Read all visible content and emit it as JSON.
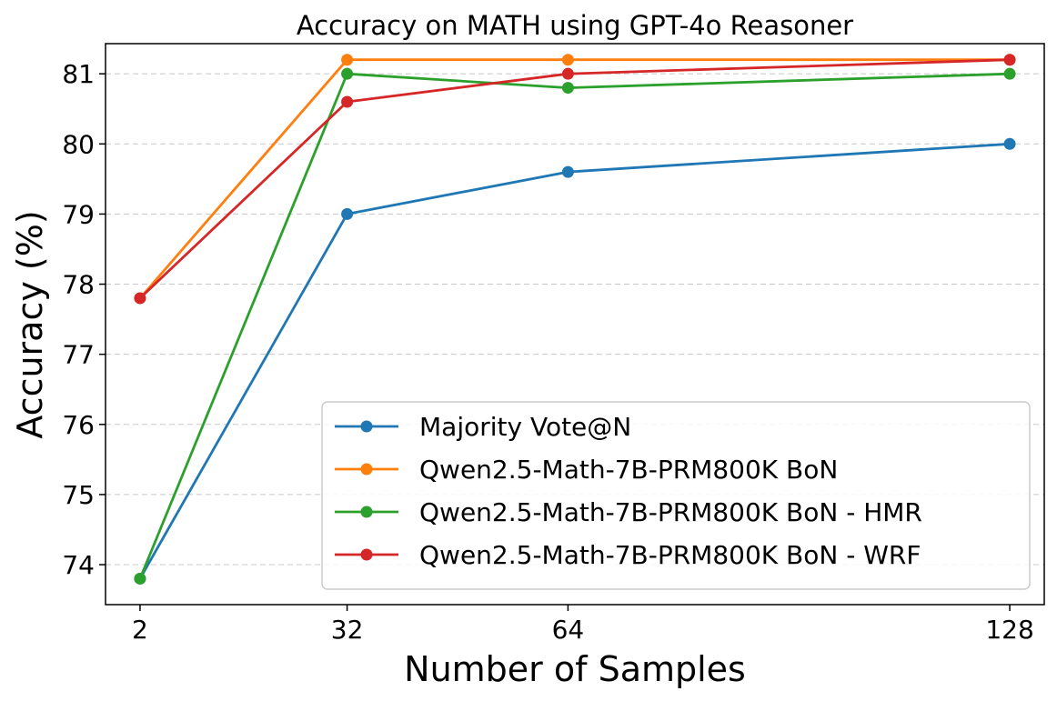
{
  "chart_data": {
    "type": "line",
    "title": "Accuracy on MATH using GPT-4o Reasoner",
    "xlabel": "Number of Samples",
    "ylabel": "Accuracy (%)",
    "x": [
      2,
      32,
      64,
      128
    ],
    "x_tick_labels": [
      "2",
      "32",
      "64",
      "128"
    ],
    "y_ticks": [
      74,
      75,
      76,
      77,
      78,
      79,
      80,
      81
    ],
    "y_tick_labels": [
      "74",
      "75",
      "76",
      "77",
      "78",
      "79",
      "80",
      "81"
    ],
    "ylim": [
      73.43,
      81.43
    ],
    "xlim": [
      -3.0,
      133.0
    ],
    "grid": "y-dashed",
    "legend_position": "lower-right",
    "series": [
      {
        "name": "Majority Vote@N",
        "color": "#1f77b4",
        "values": [
          73.8,
          79.0,
          79.6,
          80.0
        ]
      },
      {
        "name": "Qwen2.5-Math-7B-PRM800K BoN",
        "color": "#ff7f0e",
        "values": [
          77.8,
          81.2,
          81.2,
          81.2
        ]
      },
      {
        "name": "Qwen2.5-Math-7B-PRM800K BoN - HMR",
        "color": "#2ca02c",
        "values": [
          73.8,
          81.0,
          80.8,
          81.0
        ]
      },
      {
        "name": "Qwen2.5-Math-7B-PRM800K BoN - WRF",
        "color": "#d62728",
        "values": [
          77.8,
          80.6,
          81.0,
          81.2
        ]
      }
    ]
  }
}
